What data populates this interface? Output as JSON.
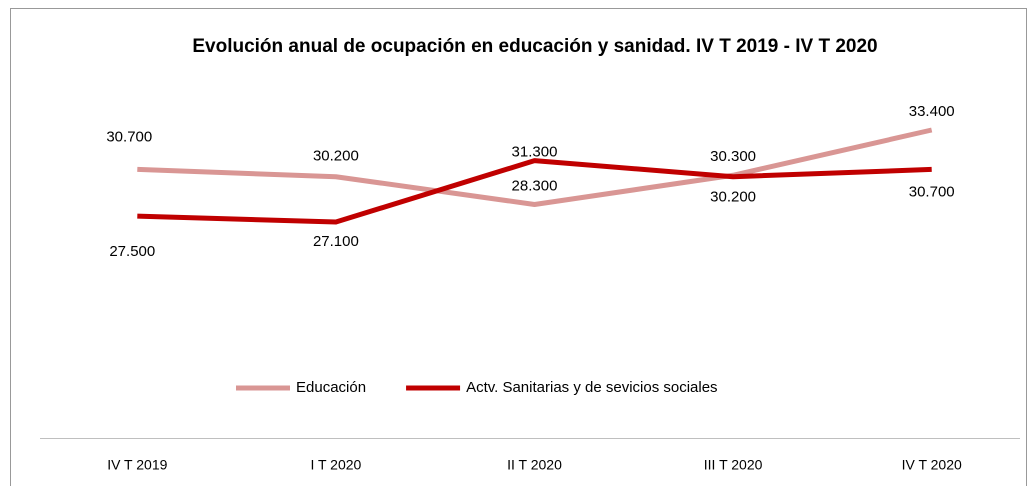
{
  "chart_data": {
    "type": "line",
    "title": "Evolución anual de ocupación en educación y sanidad. IV T 2019 - IV T 2020",
    "categories": [
      "IV T 2019",
      "I T 2020",
      "II T 2020",
      "III T 2020",
      "IV T 2020"
    ],
    "series": [
      {
        "name": "Educación",
        "color": "#d99694",
        "values": [
          30700,
          30200,
          28300,
          30300,
          33400
        ],
        "value_labels": [
          "30.700",
          "30.200",
          "28.300",
          "30.300",
          "33.400"
        ]
      },
      {
        "name": "Actv. Sanitarias y de sevicios sociales",
        "color": "#c00000",
        "values": [
          27500,
          27100,
          31300,
          30200,
          30700
        ],
        "value_labels": [
          "27.500",
          "27.100",
          "31.300",
          "30.200",
          "30.700"
        ]
      }
    ],
    "legend": "bottom"
  }
}
